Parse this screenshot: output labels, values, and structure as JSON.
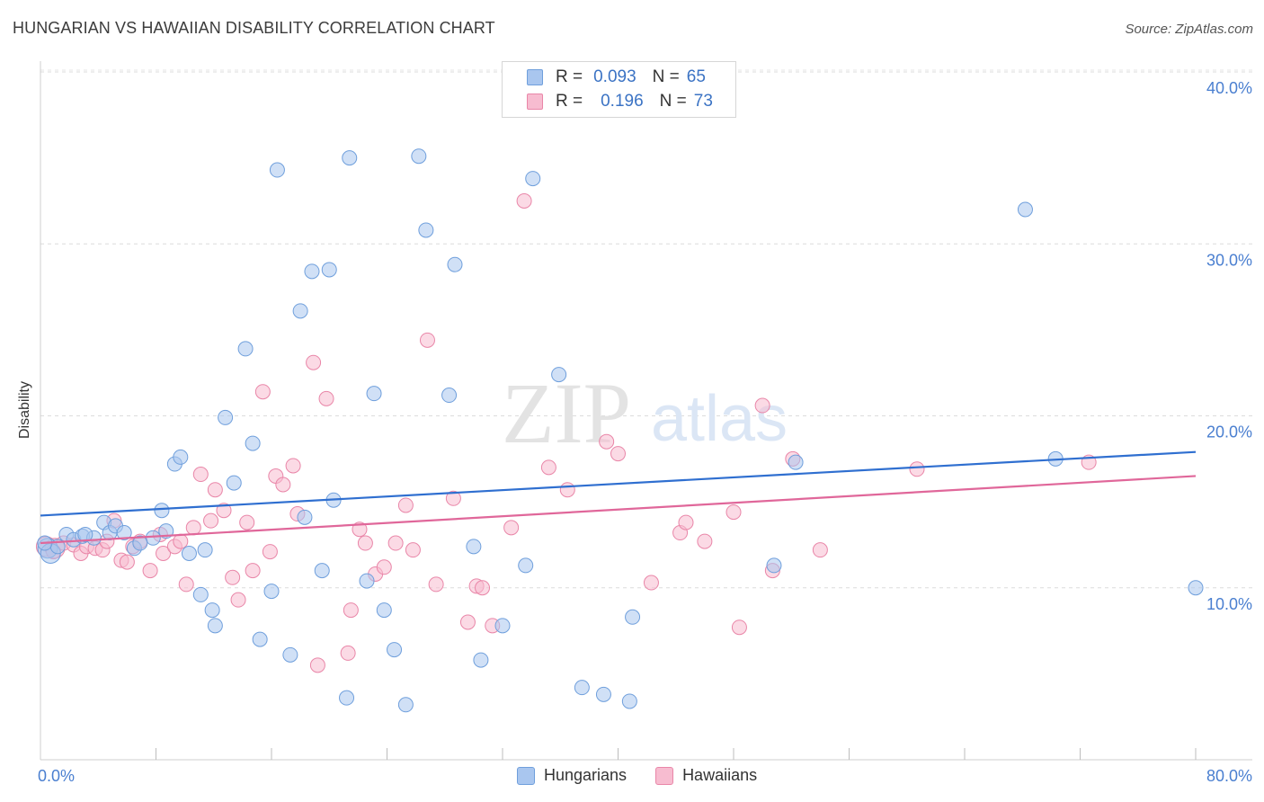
{
  "header": {
    "title": "HUNGARIAN VS HAWAIIAN DISABILITY CORRELATION CHART",
    "source": "Source: ZipAtlas.com"
  },
  "watermark": {
    "part1": "ZIP",
    "part2": "atlas"
  },
  "legend": {
    "rows": [
      {
        "r_label": "R =",
        "r_value": "0.093",
        "n_label": "N =",
        "n_value": "65",
        "color": "#a9c6ef",
        "stroke": "#6f9fdc"
      },
      {
        "r_label": "R =",
        "r_value": "0.196",
        "n_label": "N =",
        "n_value": "73",
        "color": "#f7bcd0",
        "stroke": "#e986a8"
      }
    ]
  },
  "bottom_legend": {
    "items": [
      {
        "label": "Hungarians",
        "color": "#a9c6ef",
        "stroke": "#6f9fdc"
      },
      {
        "label": "Hawaiians",
        "color": "#f7bcd0",
        "stroke": "#e986a8"
      }
    ]
  },
  "chart_data": {
    "type": "scatter",
    "title": "HUNGARIAN VS HAWAIIAN DISABILITY CORRELATION CHART",
    "xlabel": "",
    "ylabel": "Disability",
    "xlim": [
      0,
      80
    ],
    "ylim": [
      0,
      40
    ],
    "x_tick_labels": [
      "0.0%",
      "80.0%"
    ],
    "y_tick_labels": [
      "10.0%",
      "20.0%",
      "30.0%",
      "40.0%"
    ],
    "y_ticks": [
      10,
      20,
      30,
      40
    ],
    "grid": true,
    "legend_position": "top-center",
    "series": [
      {
        "name": "Hungarians",
        "color": "#6f9fdc",
        "fill": "#a9c6ef",
        "trend": {
          "y_at_x0": 14.2,
          "y_at_x80": 17.9,
          "color": "#2f6fd0"
        },
        "points": [
          [
            0.5,
            12.3
          ],
          [
            0.7,
            12.0
          ],
          [
            1.2,
            12.4
          ],
          [
            1.8,
            13.1
          ],
          [
            2.3,
            12.8
          ],
          [
            2.9,
            13.0
          ],
          [
            3.7,
            12.9
          ],
          [
            4.4,
            13.8
          ],
          [
            4.8,
            13.2
          ],
          [
            5.2,
            13.6
          ],
          [
            5.8,
            13.2
          ],
          [
            6.5,
            12.3
          ],
          [
            7.8,
            12.9
          ],
          [
            8.4,
            14.5
          ],
          [
            8.7,
            13.3
          ],
          [
            9.3,
            17.2
          ],
          [
            9.7,
            17.6
          ],
          [
            10.3,
            12.0
          ],
          [
            11.1,
            9.6
          ],
          [
            11.4,
            12.2
          ],
          [
            11.9,
            8.7
          ],
          [
            12.1,
            7.8
          ],
          [
            12.8,
            19.9
          ],
          [
            13.4,
            16.1
          ],
          [
            14.2,
            23.9
          ],
          [
            14.7,
            18.4
          ],
          [
            15.2,
            7.0
          ],
          [
            16.0,
            9.8
          ],
          [
            16.4,
            34.3
          ],
          [
            17.3,
            6.1
          ],
          [
            18.0,
            26.1
          ],
          [
            18.3,
            14.1
          ],
          [
            18.8,
            28.4
          ],
          [
            19.5,
            11.0
          ],
          [
            20.0,
            28.5
          ],
          [
            20.3,
            15.1
          ],
          [
            21.2,
            3.6
          ],
          [
            21.4,
            35.0
          ],
          [
            22.6,
            10.4
          ],
          [
            23.1,
            21.3
          ],
          [
            23.8,
            8.7
          ],
          [
            24.5,
            6.4
          ],
          [
            25.3,
            3.2
          ],
          [
            26.2,
            35.1
          ],
          [
            26.7,
            30.8
          ],
          [
            28.3,
            21.2
          ],
          [
            28.7,
            28.8
          ],
          [
            30.0,
            12.4
          ],
          [
            30.5,
            5.8
          ],
          [
            32.0,
            7.8
          ],
          [
            33.6,
            11.3
          ],
          [
            34.1,
            33.8
          ],
          [
            35.9,
            22.4
          ],
          [
            37.5,
            4.2
          ],
          [
            39.0,
            3.8
          ],
          [
            40.8,
            3.4
          ],
          [
            41.0,
            8.3
          ],
          [
            50.8,
            11.3
          ],
          [
            52.3,
            17.3
          ],
          [
            68.2,
            32.0
          ],
          [
            70.3,
            17.5
          ],
          [
            80.0,
            10.0
          ],
          [
            0.3,
            12.6
          ],
          [
            3.1,
            13.1
          ],
          [
            6.9,
            12.6
          ]
        ]
      },
      {
        "name": "Hawaiians",
        "color": "#e986a8",
        "fill": "#f7bcd0",
        "trend": {
          "y_at_x0": 12.6,
          "y_at_x80": 16.5,
          "color": "#e0679a"
        },
        "points": [
          [
            0.4,
            12.4
          ],
          [
            1.0,
            12.3
          ],
          [
            1.6,
            12.6
          ],
          [
            2.3,
            12.5
          ],
          [
            2.8,
            12.0
          ],
          [
            3.2,
            12.4
          ],
          [
            3.8,
            12.3
          ],
          [
            4.3,
            12.2
          ],
          [
            4.6,
            12.7
          ],
          [
            5.1,
            13.9
          ],
          [
            5.6,
            11.6
          ],
          [
            6.0,
            11.5
          ],
          [
            6.4,
            12.4
          ],
          [
            6.9,
            12.7
          ],
          [
            7.6,
            11.0
          ],
          [
            8.3,
            13.1
          ],
          [
            8.5,
            12.0
          ],
          [
            9.3,
            12.4
          ],
          [
            9.7,
            12.7
          ],
          [
            10.1,
            10.2
          ],
          [
            10.6,
            13.5
          ],
          [
            11.1,
            16.6
          ],
          [
            11.8,
            13.9
          ],
          [
            12.1,
            15.7
          ],
          [
            12.7,
            14.5
          ],
          [
            13.3,
            10.6
          ],
          [
            13.7,
            9.3
          ],
          [
            14.3,
            13.8
          ],
          [
            14.7,
            11.0
          ],
          [
            15.4,
            21.4
          ],
          [
            15.9,
            12.1
          ],
          [
            16.3,
            16.5
          ],
          [
            16.8,
            16.0
          ],
          [
            17.5,
            17.1
          ],
          [
            17.8,
            14.3
          ],
          [
            18.9,
            23.1
          ],
          [
            19.2,
            5.5
          ],
          [
            19.8,
            21.0
          ],
          [
            21.3,
            6.2
          ],
          [
            21.5,
            8.7
          ],
          [
            22.1,
            13.4
          ],
          [
            22.5,
            12.6
          ],
          [
            23.2,
            10.8
          ],
          [
            23.8,
            11.2
          ],
          [
            24.6,
            12.6
          ],
          [
            25.3,
            14.8
          ],
          [
            25.8,
            12.2
          ],
          [
            26.8,
            24.4
          ],
          [
            27.4,
            10.2
          ],
          [
            28.6,
            15.2
          ],
          [
            29.6,
            8.0
          ],
          [
            30.2,
            10.1
          ],
          [
            30.6,
            10.0
          ],
          [
            31.3,
            7.8
          ],
          [
            32.6,
            13.5
          ],
          [
            33.5,
            32.5
          ],
          [
            35.2,
            17.0
          ],
          [
            36.5,
            15.7
          ],
          [
            39.2,
            18.5
          ],
          [
            40.0,
            17.8
          ],
          [
            42.3,
            10.3
          ],
          [
            44.3,
            13.2
          ],
          [
            44.7,
            13.8
          ],
          [
            46.0,
            12.7
          ],
          [
            48.0,
            14.4
          ],
          [
            48.4,
            7.7
          ],
          [
            50.0,
            20.6
          ],
          [
            50.7,
            11.0
          ],
          [
            52.1,
            17.5
          ],
          [
            54.0,
            12.2
          ],
          [
            60.7,
            16.9
          ],
          [
            72.6,
            17.3
          ],
          [
            0.9,
            12.1
          ]
        ]
      }
    ]
  }
}
